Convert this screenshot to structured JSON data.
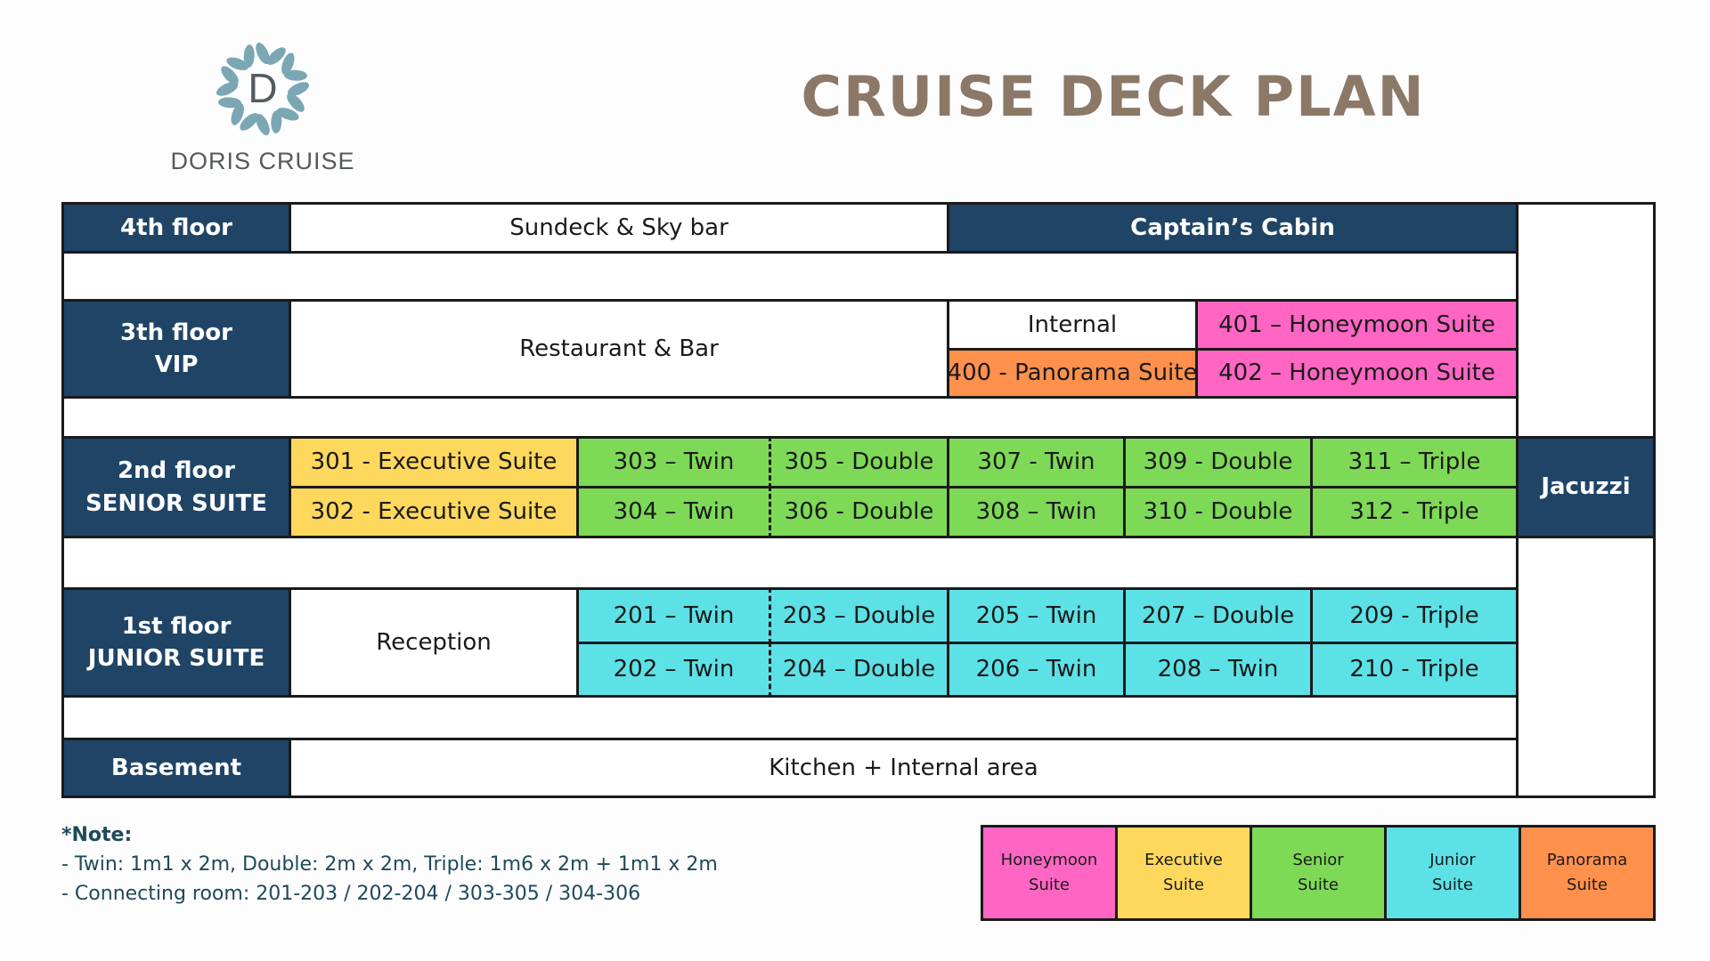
{
  "header": {
    "brand": "DORIS CRUISE",
    "logo_letter": "D",
    "title": "CRUISE DECK PLAN"
  },
  "floors": {
    "fourth": {
      "label": "4th floor",
      "sundeck": "Sundeck & Sky bar",
      "captain": "Captain’s Cabin"
    },
    "third": {
      "label1": "3th floor",
      "label2": "VIP",
      "restaurant": "Restaurant & Bar",
      "internal": "Internal",
      "r400": "400 - Panorama Suite",
      "r401": "401 – Honeymoon Suite",
      "r402": "402 – Honeymoon Suite"
    },
    "second": {
      "label1": "2nd floor",
      "label2": "SENIOR SUITE",
      "r301": "301 - Executive Suite",
      "r302": "302 - Executive Suite",
      "r303": "303 – Twin",
      "r304": "304 – Twin",
      "r305": "305 - Double",
      "r306": "306 - Double",
      "r307": "307 - Twin",
      "r308": "308 – Twin",
      "r309": "309 - Double",
      "r310": "310 - Double",
      "r311": "311 – Triple",
      "r312": "312 - Triple",
      "jacuzzi": "Jacuzzi"
    },
    "first": {
      "label1": "1st floor",
      "label2": "JUNIOR SUITE",
      "reception": "Reception",
      "r201": "201 – Twin",
      "r202": "202 – Twin",
      "r203": "203 – Double",
      "r204": "204 – Double",
      "r205": "205 – Twin",
      "r206": "206 – Twin",
      "r207": "207 – Double",
      "r208": "208 – Twin",
      "r209": "209 - Triple",
      "r210": "210 - Triple"
    },
    "basement": {
      "label": "Basement",
      "kitchen": "Kitchen + Internal area"
    }
  },
  "notes": {
    "heading": "*Note:",
    "line1": "- Twin: 1m1 x 2m, Double: 2m x 2m, Triple: 1m6 x 2m + 1m1 x 2m",
    "line2": "- Connecting room: 201-203 / 202-204 / 303-305 / 304-306"
  },
  "legend": [
    {
      "l1": "Honeymoon",
      "l2": "Suite",
      "color": "#ff66c4"
    },
    {
      "l1": "Executive",
      "l2": "Suite",
      "color": "#fdd85d"
    },
    {
      "l1": "Senior",
      "l2": "Suite",
      "color": "#7ed957"
    },
    {
      "l1": "Junior",
      "l2": "Suite",
      "color": "#5ce1e6"
    },
    {
      "l1": "Panorama",
      "l2": "Suite",
      "color": "#ff914d"
    }
  ],
  "colors": {
    "navy": "#1f4466",
    "title": "#8c7867",
    "logo_petal": "#7ba7b5"
  }
}
